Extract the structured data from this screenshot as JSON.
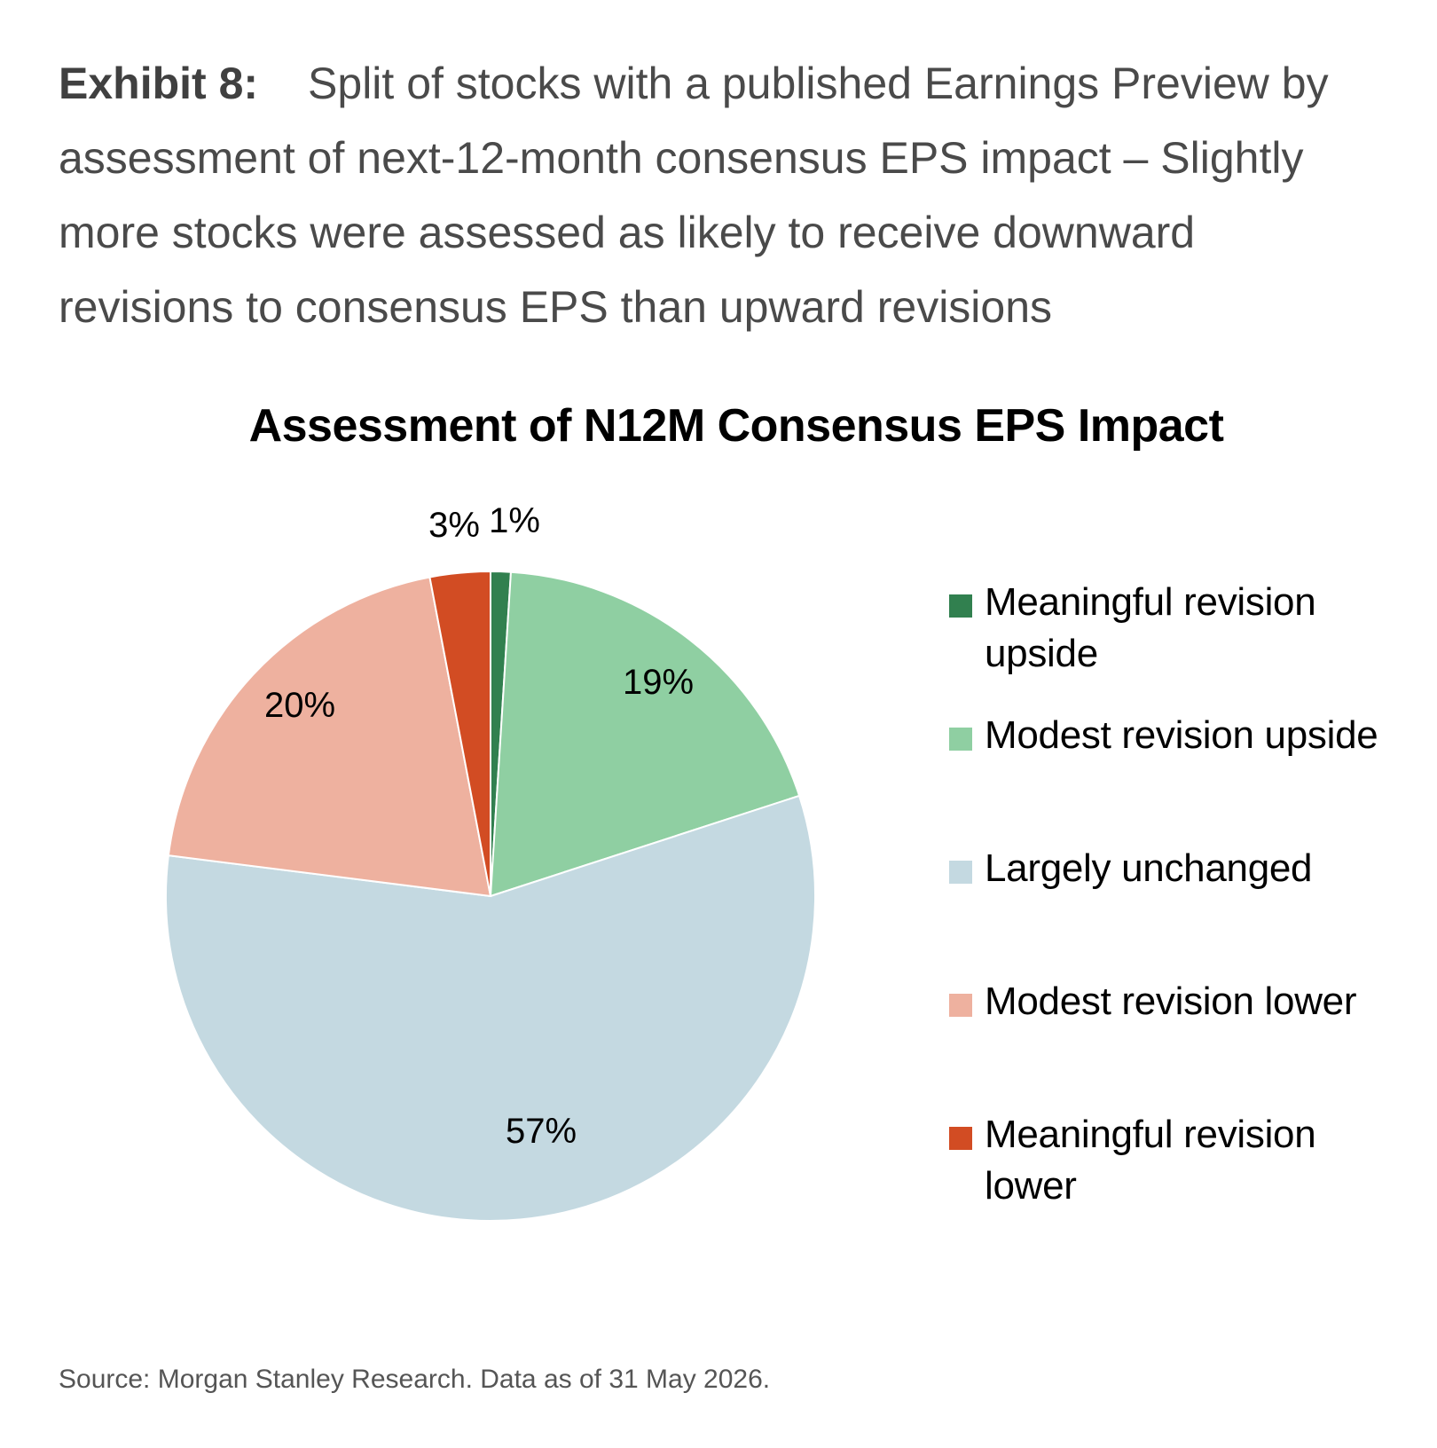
{
  "exhibit": {
    "label": "Exhibit 8:",
    "caption": "Split of stocks with a published Earnings Preview by assessment of next-12-month consensus EPS impact – Slightly more stocks were assessed as likely to receive downward revisions to consensus EPS than upward revisions"
  },
  "chart_data": {
    "type": "pie",
    "title": "Assessment of N12M Consensus EPS Impact",
    "categories": [
      "Meaningful revision upside",
      "Modest revision upside",
      "Largely unchanged",
      "Modest revision lower",
      "Meaningful revision lower"
    ],
    "values": [
      1,
      19,
      57,
      20,
      3
    ],
    "labels": [
      "1%",
      "19%",
      "57%",
      "20%",
      "3%"
    ],
    "colors": [
      "#31804f",
      "#8fcfa2",
      "#c4d9e1",
      "#eeb19f",
      "#d24c23"
    ],
    "legend_position": "right"
  },
  "source": "Source: Morgan Stanley Research. Data as of 31 May 2026."
}
